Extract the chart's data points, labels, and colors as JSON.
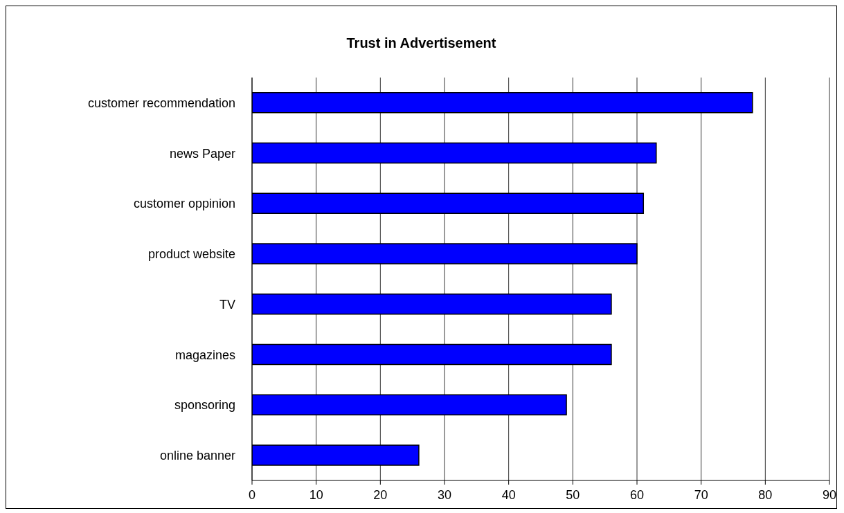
{
  "chart_data": {
    "type": "bar",
    "orientation": "horizontal",
    "title": "Trust in Advertisement",
    "categories": [
      "customer recommendation",
      "news Paper",
      "customer oppinion",
      "product website",
      "TV",
      "magazines",
      "sponsoring",
      "online banner"
    ],
    "values": [
      78,
      63,
      61,
      60,
      56,
      56,
      49,
      26
    ],
    "color": "#0000ff",
    "xlim": [
      0,
      90
    ],
    "xticks": [
      0,
      10,
      20,
      30,
      40,
      50,
      60,
      70,
      80,
      90
    ],
    "grid": "x"
  }
}
